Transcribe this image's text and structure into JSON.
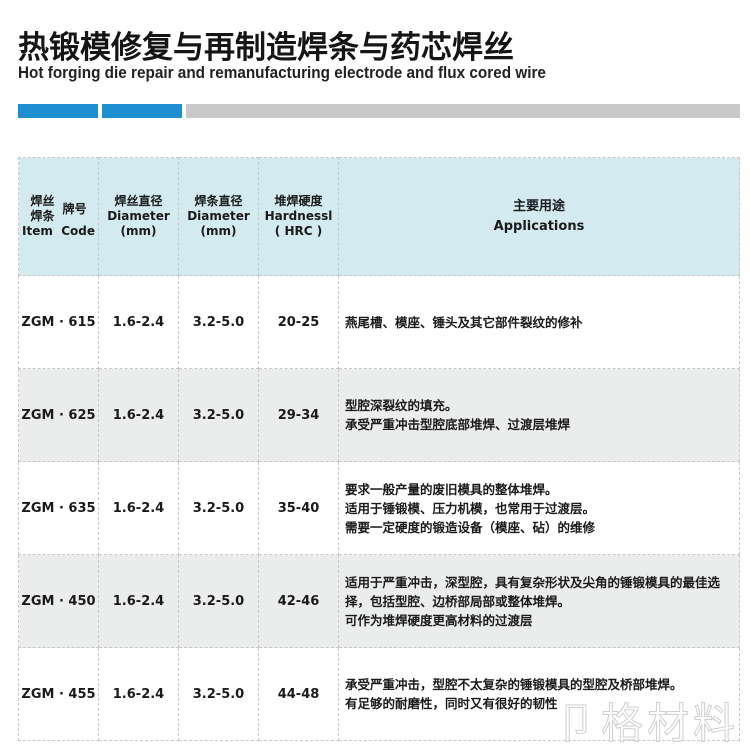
{
  "title": "热锻模修复与再制造焊条与药芯焊丝",
  "subtitle": "Hot forging die repair and remanufacturing electrode and flux cored wire",
  "colors": {
    "accent_blue": "#1e8fd0",
    "bar_gray": "#c9c9c9",
    "header_bg": "#d3ebf0",
    "alt_row": "#ebedec"
  },
  "table": {
    "headers": {
      "item_code": {
        "cn1": "焊丝",
        "cn2": "焊条",
        "cn_code": "牌号",
        "en": "Item  Code"
      },
      "wire_dia": {
        "cn": "焊丝直径",
        "en": "Diameter",
        "unit": "(mm)"
      },
      "rod_dia": {
        "cn": "焊条直径",
        "en": "Diameter",
        "unit": "(mm)"
      },
      "hardness": {
        "cn": "堆焊硬度",
        "en": "Hardnessl",
        "unit": "( HRC )"
      },
      "applications": {
        "cn": "主要用途",
        "en": "Applications"
      }
    },
    "rows": [
      {
        "code": "ZGM · 615",
        "wire": "1.6-2.4",
        "rod": "3.2-5.0",
        "hrc": "20-25",
        "app": [
          "燕尾槽、模座、锤头及其它部件裂纹的修补"
        ]
      },
      {
        "code": "ZGM · 625",
        "wire": "1.6-2.4",
        "rod": "3.2-5.0",
        "hrc": "29-34",
        "app": [
          "型腔深裂纹的填充。",
          "承受严重冲击型腔底部堆焊、过渡层堆焊"
        ]
      },
      {
        "code": "ZGM · 635",
        "wire": "1.6-2.4",
        "rod": "3.2-5.0",
        "hrc": "35-40",
        "app": [
          "要求一般产量的废旧模具的整体堆焊。",
          "适用于锤锻模、压力机模，也常用于过渡层。",
          "需要一定硬度的锻造设备（模座、砧）的维修"
        ]
      },
      {
        "code": "ZGM · 450",
        "wire": "1.6-2.4",
        "rod": "3.2-5.0",
        "hrc": "42-46",
        "app": [
          "适用于严重冲击，深型腔，具有复杂形状及尖角的锤锻模具的最佳选",
          "择，包括型腔、边桥部局部或整体堆焊。",
          "可作为堆焊硬度更高材料的过渡层"
        ]
      },
      {
        "code": "ZGM · 455",
        "wire": "1.6-2.4",
        "rod": "3.2-5.0",
        "hrc": "44-48",
        "app": [
          "承受严重冲击，型腔不太复杂的锤锻模具的型腔及桥部堆焊。",
          "有足够的耐磨性，同时又有很好的韧性"
        ]
      }
    ]
  },
  "watermark": "卩格材料"
}
